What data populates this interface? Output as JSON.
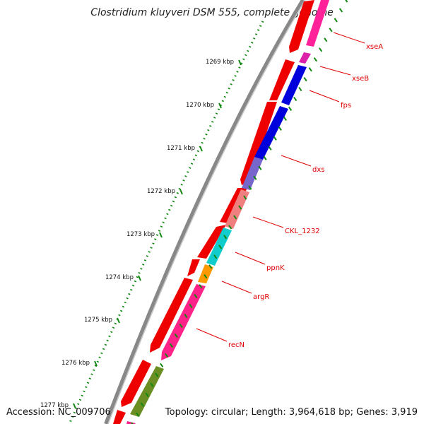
{
  "title": "Clostridium kluyveri DSM 555, complete genome",
  "footer": {
    "accession": "Accession: NC_009706",
    "summary": "Topology: circular; Length: 3,964,618 bp; Genes: 3,919"
  },
  "ruler_labels": [
    "1269 kbp",
    "1270 kbp",
    "1271 kbp",
    "1272 kbp",
    "1273 kbp",
    "1274 kbp",
    "1275 kbp",
    "1276 kbp",
    "1277 kbp"
  ],
  "gene_labels": [
    "xseA",
    "xseB",
    "fps",
    "dxs",
    "CKL_1232",
    "ppnK",
    "argR",
    "recN"
  ],
  "colors": {
    "forward_cds": "#ee0000",
    "backbone": "#888888",
    "ruler_ticks": "#118811",
    "label": "#e00000",
    "xseA": "#ff2299",
    "xseB": "#dd22aa",
    "fps": "#0000dd",
    "dxs": "#7766cc",
    "CKL_1232": "#f08080",
    "ppnK": "#11cccc",
    "argR": "#ff9900",
    "recN": "#ff2288",
    "next_gene": "#6b8e23"
  }
}
